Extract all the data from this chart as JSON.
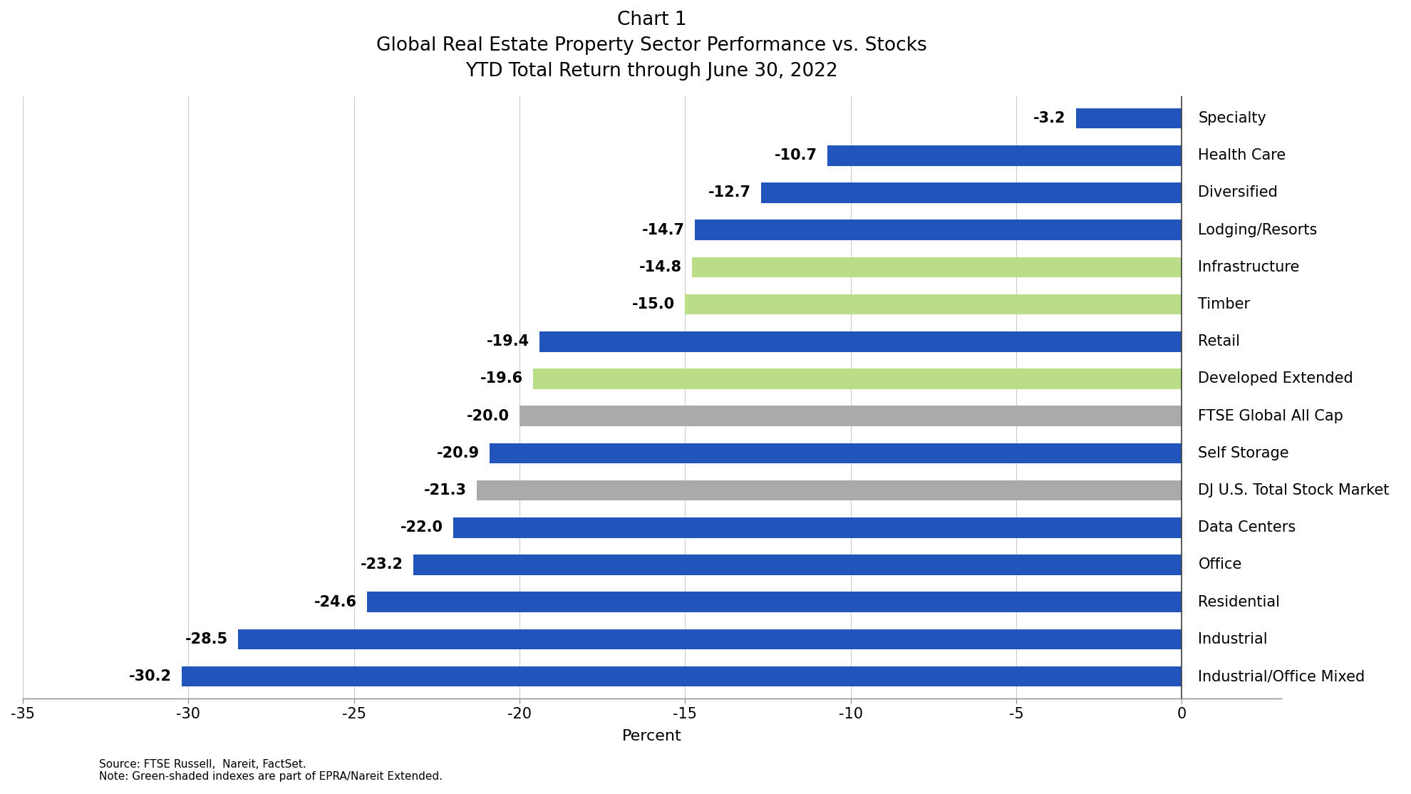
{
  "title_line1": "Chart 1",
  "title_line2": "Global Real Estate Property Sector Performance vs. Stocks",
  "title_line3": "YTD Total Return through June 30, 2022",
  "categories": [
    "Industrial/Office Mixed",
    "Industrial",
    "Residential",
    "Office",
    "Data Centers",
    "DJ U.S. Total Stock Market",
    "Self Storage",
    "FTSE Global All Cap",
    "Developed Extended",
    "Retail",
    "Timber",
    "Infrastructure",
    "Lodging/Resorts",
    "Diversified",
    "Health Care",
    "Specialty"
  ],
  "values": [
    -30.2,
    -28.5,
    -24.6,
    -23.2,
    -22.0,
    -21.3,
    -20.9,
    -20.0,
    -19.6,
    -19.4,
    -15.0,
    -14.8,
    -14.7,
    -12.7,
    -10.7,
    -3.2
  ],
  "colors": [
    "#2255bb",
    "#2255bb",
    "#2255bb",
    "#2255bb",
    "#2255bb",
    "#aaaaaa",
    "#2255bb",
    "#aaaaaa",
    "#bbdd88",
    "#2255bb",
    "#bbdd88",
    "#bbdd88",
    "#2255bb",
    "#2255bb",
    "#2255bb",
    "#2255bb"
  ],
  "xlabel": "Percent",
  "xlim": [
    -35,
    3
  ],
  "xticks": [
    -35,
    -30,
    -25,
    -20,
    -15,
    -10,
    -5,
    0
  ],
  "footnote_line1": "Source: FTSE Russell,  Nareit, FactSet.",
  "footnote_line2": "Note: Green-shaded indexes are part of EPRA/Nareit Extended.",
  "background_color": "#ffffff",
  "bar_height": 0.55,
  "title_fontsize": 19,
  "category_fontsize": 15,
  "value_fontsize": 15,
  "tick_fontsize": 15,
  "xlabel_fontsize": 16,
  "footnote_fontsize": 11
}
